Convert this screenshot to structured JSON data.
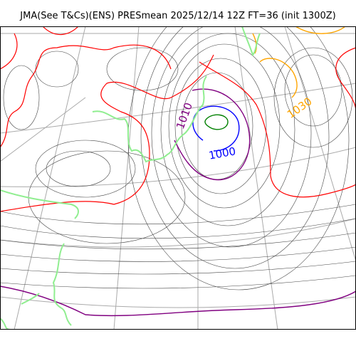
{
  "title": "JMA(See T&Cs)(ENS) PRESmean 2025/12/14 12Z FT=36 (init 1300Z)",
  "contour_labels": {
    "l1010": "1010",
    "l1000": "1000",
    "l1030": "1030"
  },
  "colors": {
    "isobar_1000": "#0000ff",
    "isobar_1010": "#800080",
    "isobar_1020": "#ff0000",
    "isobar_1030": "#ffa500",
    "isobar_990": "#008000",
    "coastline": "#90ee90",
    "isobar_regular": "#444444",
    "graticule": "#aaaaaa"
  }
}
